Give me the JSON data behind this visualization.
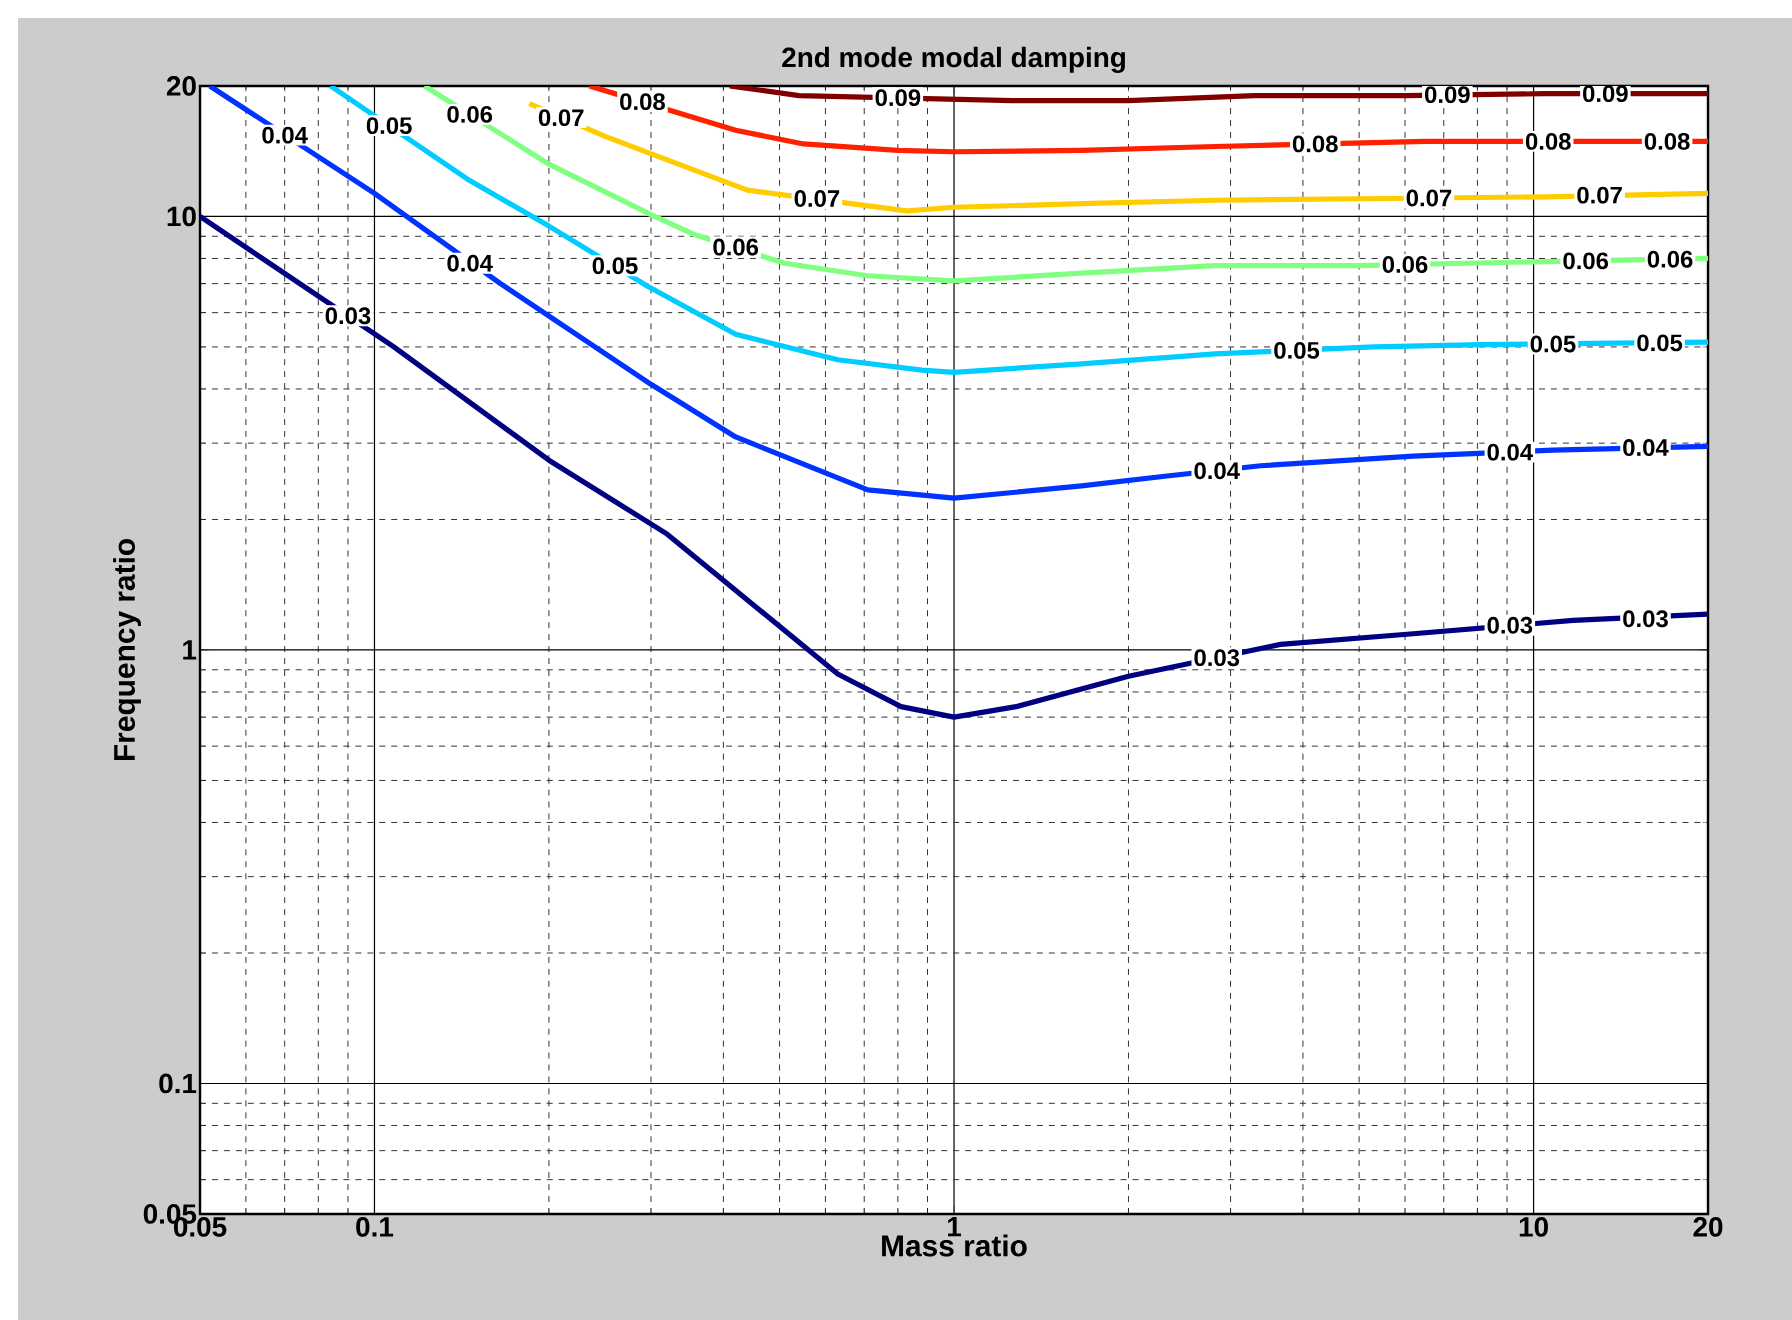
{
  "chart_data": {
    "type": "line",
    "title": "2nd mode modal damping",
    "xlabel": "Mass ratio",
    "ylabel": "Frequency ratio",
    "log": "xy",
    "grid": true,
    "xlim": [
      0.05,
      20
    ],
    "ylim": [
      0.05,
      20
    ],
    "xticks": [
      0.05,
      0.1,
      1,
      10,
      20
    ],
    "yticks": [
      0.05,
      0.1,
      1,
      10,
      20
    ],
    "series": [
      {
        "color": "#000080",
        "x": [
          0.05,
          0.108,
          0.2,
          0.32,
          0.63,
          0.81,
          1,
          1.28,
          2,
          3.66,
          6.2,
          11.7,
          20
        ],
        "values": [
          10,
          5.0,
          2.74,
          1.85,
          0.88,
          0.74,
          0.7,
          0.74,
          0.87,
          1.03,
          1.09,
          1.17,
          1.21
        ]
      },
      {
        "color": "#0033ff",
        "x": [
          0.052,
          0.1,
          0.165,
          0.3,
          0.42,
          0.71,
          1,
          1.66,
          2.33,
          3.38,
          6.2,
          10.8,
          20
        ],
        "values": [
          20,
          11.3,
          7.0,
          4.1,
          3.1,
          2.34,
          2.24,
          2.39,
          2.52,
          2.66,
          2.8,
          2.89,
          2.95
        ]
      },
      {
        "color": "#00ccff",
        "x": [
          0.084,
          0.146,
          0.2,
          0.296,
          0.42,
          0.63,
          0.88,
          1,
          1.66,
          2.82,
          5.3,
          8.1,
          20
        ],
        "values": [
          20,
          12.1,
          9.5,
          6.9,
          5.35,
          4.67,
          4.42,
          4.37,
          4.57,
          4.82,
          5.0,
          5.06,
          5.13
        ]
      },
      {
        "color": "#80ff80",
        "x": [
          0.122,
          0.2,
          0.3,
          0.355,
          0.51,
          0.71,
          1,
          1.66,
          2.82,
          5.0,
          7.6,
          20
        ],
        "values": [
          20,
          13.2,
          10.1,
          9.1,
          7.8,
          7.3,
          7.1,
          7.4,
          7.7,
          7.7,
          7.8,
          8.0
        ]
      },
      {
        "color": "#ffcc00",
        "x": [
          0.185,
          0.25,
          0.32,
          0.44,
          0.83,
          1,
          1.66,
          2.82,
          5.6,
          10.5,
          20
        ],
        "values": [
          18.2,
          15.3,
          13.5,
          11.5,
          10.3,
          10.5,
          10.7,
          10.9,
          11.0,
          11.1,
          11.3
        ]
      },
      {
        "color": "#ff2000",
        "x": [
          0.235,
          0.42,
          0.55,
          0.8,
          1,
          1.66,
          2.82,
          6.5,
          20
        ],
        "values": [
          20,
          15.8,
          14.7,
          14.2,
          14.1,
          14.2,
          14.5,
          14.9,
          14.9
        ]
      },
      {
        "color": "#800000",
        "x": [
          0.41,
          0.54,
          1.26,
          2,
          3.3,
          6.0,
          10.5,
          20
        ],
        "values": [
          20,
          19.0,
          18.5,
          18.5,
          19.0,
          19.0,
          19.2,
          19.2
        ]
      }
    ],
    "annotations": [
      {
        "text": "0.03",
        "x": 0.09,
        "y": 5.9
      },
      {
        "text": "0.03",
        "x": 2.84,
        "y": 0.96
      },
      {
        "text": "0.03",
        "x": 9.1,
        "y": 1.14
      },
      {
        "text": "0.03",
        "x": 15.6,
        "y": 1.18
      },
      {
        "text": "0.04",
        "x": 0.07,
        "y": 15.4
      },
      {
        "text": "0.04",
        "x": 0.146,
        "y": 7.8
      },
      {
        "text": "0.04",
        "x": 2.84,
        "y": 2.59
      },
      {
        "text": "0.04",
        "x": 9.1,
        "y": 2.86
      },
      {
        "text": "0.04",
        "x": 15.6,
        "y": 2.93
      },
      {
        "text": "0.05",
        "x": 0.106,
        "y": 16.2
      },
      {
        "text": "0.05",
        "x": 0.26,
        "y": 7.7
      },
      {
        "text": "0.05",
        "x": 3.9,
        "y": 4.91
      },
      {
        "text": "0.05",
        "x": 10.8,
        "y": 5.08
      },
      {
        "text": "0.05",
        "x": 16.5,
        "y": 5.11
      },
      {
        "text": "0.06",
        "x": 0.146,
        "y": 17.2
      },
      {
        "text": "0.06",
        "x": 0.42,
        "y": 8.5
      },
      {
        "text": "0.06",
        "x": 6.0,
        "y": 7.75
      },
      {
        "text": "0.06",
        "x": 12.3,
        "y": 7.9
      },
      {
        "text": "0.06",
        "x": 17.2,
        "y": 7.97
      },
      {
        "text": "0.07",
        "x": 0.21,
        "y": 16.9
      },
      {
        "text": "0.07",
        "x": 0.58,
        "y": 11.0
      },
      {
        "text": "0.07",
        "x": 6.6,
        "y": 11.03
      },
      {
        "text": "0.07",
        "x": 13,
        "y": 11.2
      },
      {
        "text": "0.08",
        "x": 0.29,
        "y": 18.4
      },
      {
        "text": "0.08",
        "x": 4.2,
        "y": 14.7
      },
      {
        "text": "0.08",
        "x": 10.6,
        "y": 14.9
      },
      {
        "text": "0.08",
        "x": 17,
        "y": 14.9
      },
      {
        "text": "0.09",
        "x": 0.8,
        "y": 18.8
      },
      {
        "text": "0.09",
        "x": 7.1,
        "y": 19.1
      },
      {
        "text": "0.09",
        "x": 13.3,
        "y": 19.2
      }
    ]
  }
}
